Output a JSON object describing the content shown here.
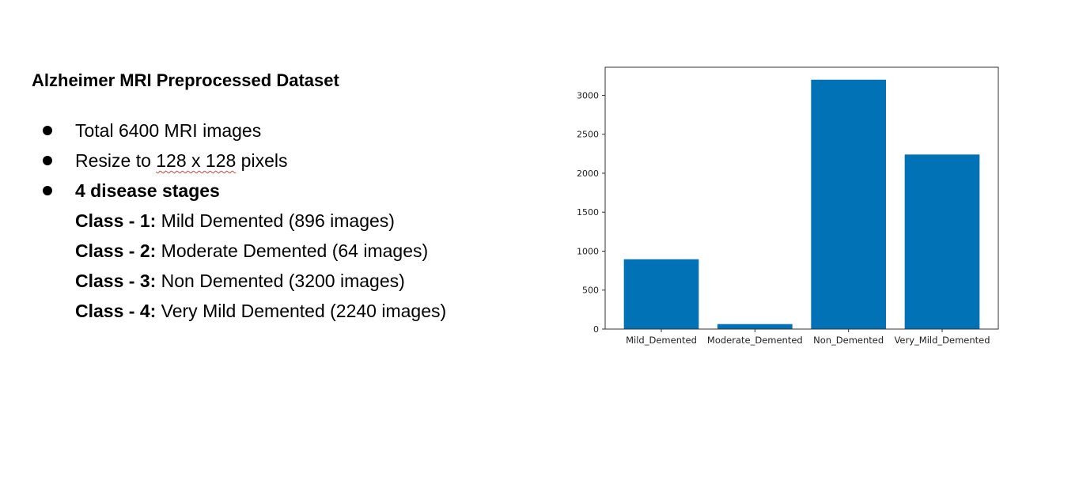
{
  "slide": {
    "title": "Alzheimer MRI Preprocessed Dataset",
    "bullets": [
      {
        "text": "Total 6400 MRI images"
      },
      {
        "before": "Resize to ",
        "underlined": "128 x 128",
        "after": " pixels"
      },
      {
        "text": "4 disease stages"
      }
    ],
    "classes": [
      {
        "label": "Class - 1:",
        "text": " Mild Demented (896 images)"
      },
      {
        "label": "Class - 2:",
        "text": " Moderate Demented (64 images)"
      },
      {
        "label": "Class - 3:",
        "text": " Non Demented (3200 images)"
      },
      {
        "label": "Class - 4:",
        "text": " Very Mild Demented (2240 images)"
      }
    ]
  },
  "chart_data": {
    "type": "bar",
    "categories": [
      "Mild_Demented",
      "Moderate_Demented",
      "Non_Demented",
      "Very_Mild_Demented"
    ],
    "values": [
      896,
      64,
      3200,
      2240
    ],
    "title": "",
    "xlabel": "",
    "ylabel": "",
    "ylim": [
      0,
      3360
    ],
    "yticks": [
      0,
      500,
      1000,
      1500,
      2000,
      2500,
      3000
    ],
    "grid": false,
    "bar_color": "#0072b5"
  }
}
